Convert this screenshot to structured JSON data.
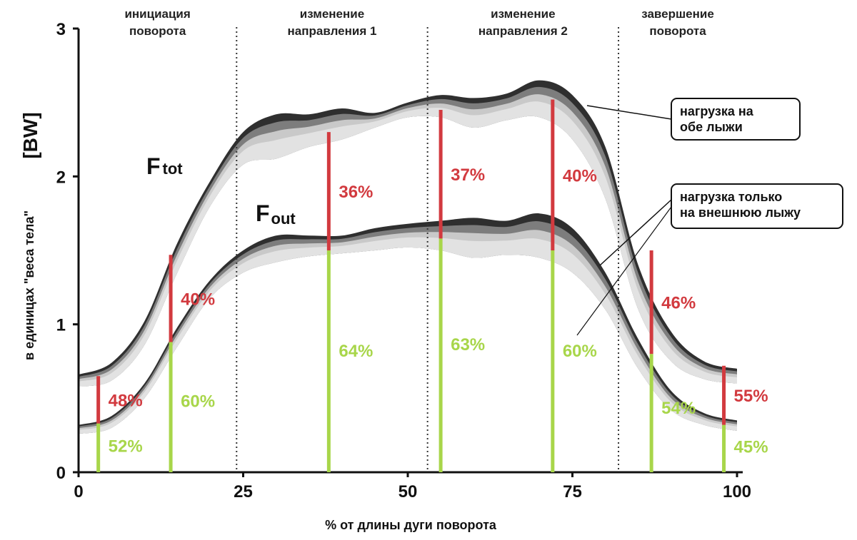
{
  "chart_data": {
    "type": "area",
    "xlabel": "% от длины дуги поворота",
    "ylabel": "в единицах \"веса тела\"",
    "ylabel_unit": "[BW]",
    "xlim": [
      0,
      100
    ],
    "ylim": [
      0,
      3
    ],
    "x_ticks": [
      "0",
      "25",
      "50",
      "75",
      "100"
    ],
    "y_ticks": [
      "0",
      "1",
      "2",
      "3"
    ],
    "phase_boundaries": [
      24,
      53,
      82
    ],
    "phases": [
      {
        "lines": [
          "инициация",
          "поворота"
        ]
      },
      {
        "lines": [
          "изменение",
          "направления 1"
        ]
      },
      {
        "lines": [
          "изменение",
          "направления 2"
        ]
      },
      {
        "lines": [
          "завершение",
          "поворота"
        ]
      }
    ],
    "series": [
      {
        "name": "F",
        "name_sub": "tot",
        "x": [
          0,
          5,
          10,
          15,
          20,
          25,
          30,
          35,
          40,
          45,
          50,
          55,
          60,
          65,
          70,
          75,
          80,
          85,
          90,
          95,
          100
        ],
        "upper": [
          0.66,
          0.74,
          1.02,
          1.55,
          1.97,
          2.3,
          2.42,
          2.42,
          2.46,
          2.43,
          2.5,
          2.55,
          2.53,
          2.56,
          2.65,
          2.55,
          2.2,
          1.4,
          0.95,
          0.75,
          0.7
        ],
        "lower": [
          0.58,
          0.62,
          0.86,
          1.35,
          1.8,
          2.08,
          2.12,
          2.2,
          2.25,
          2.33,
          2.4,
          2.4,
          2.33,
          2.38,
          2.4,
          2.25,
          1.85,
          1.1,
          0.75,
          0.63,
          0.6
        ]
      },
      {
        "name": "F",
        "name_sub": "out",
        "x": [
          0,
          5,
          10,
          15,
          20,
          25,
          30,
          35,
          40,
          45,
          50,
          55,
          60,
          65,
          70,
          75,
          80,
          85,
          90,
          95,
          100
        ],
        "upper": [
          0.32,
          0.38,
          0.6,
          0.98,
          1.3,
          1.5,
          1.6,
          1.6,
          1.6,
          1.65,
          1.68,
          1.7,
          1.72,
          1.7,
          1.75,
          1.65,
          1.35,
          0.9,
          0.55,
          0.4,
          0.35
        ],
        "lower": [
          0.26,
          0.3,
          0.5,
          0.85,
          1.18,
          1.35,
          1.42,
          1.46,
          1.48,
          1.5,
          1.52,
          1.5,
          1.45,
          1.47,
          1.45,
          1.35,
          1.1,
          0.7,
          0.42,
          0.32,
          0.28
        ]
      }
    ],
    "markers": [
      {
        "x": 3,
        "y_low": 0.33,
        "y_high": 0.65,
        "inner_pct": "52%",
        "outer_pct": "48%"
      },
      {
        "x": 14,
        "y_low": 0.88,
        "y_high": 1.47,
        "inner_pct": "60%",
        "outer_pct": "40%"
      },
      {
        "x": 38,
        "y_low": 1.5,
        "y_high": 2.3,
        "inner_pct": "64%",
        "outer_pct": "36%"
      },
      {
        "x": 55,
        "y_low": 1.58,
        "y_high": 2.45,
        "inner_pct": "63%",
        "outer_pct": "37%"
      },
      {
        "x": 72,
        "y_low": 1.5,
        "y_high": 2.52,
        "inner_pct": "60%",
        "outer_pct": "40%"
      },
      {
        "x": 87,
        "y_low": 0.8,
        "y_high": 1.5,
        "inner_pct": "54%",
        "outer_pct": "46%"
      },
      {
        "x": 98,
        "y_low": 0.32,
        "y_high": 0.72,
        "inner_pct": "45%",
        "outer_pct": "55%"
      }
    ],
    "callouts": [
      {
        "lines": [
          "нагрузка на",
          "обе  лыжи"
        ]
      },
      {
        "lines": [
          "нагрузка  только",
          "на внешнюю лыжу"
        ]
      }
    ],
    "colors": {
      "band_dark": "#2f2f2f",
      "band_mid": "#7d7d7d",
      "band_light": "#c9c9c9",
      "band_lightest": "#e2e2e2",
      "marker_red": "#d23a3f",
      "marker_green": "#a8d64a"
    }
  }
}
